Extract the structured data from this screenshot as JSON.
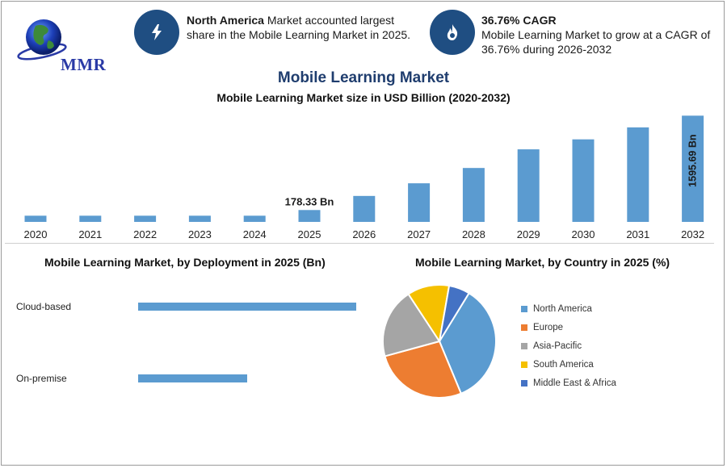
{
  "logo": {
    "text": "MMR"
  },
  "highlights": [
    {
      "bold": "North America",
      "text": " Market accounted largest share in the Mobile Learning Market in 2025.",
      "icon": "lightning-icon"
    },
    {
      "bold": "36.76% CAGR",
      "text": "Mobile Learning Market to grow at a CAGR of 36.76% during 2026-2032",
      "icon": "flame-icon"
    }
  ],
  "page": {
    "title": "Mobile Learning Market",
    "subtitle": "Mobile Learning Market size in USD Billion (2020-2032)"
  },
  "chart_data": [
    {
      "type": "bar",
      "title": "Mobile Learning Market size in USD Billion (2020-2032)",
      "categories": [
        "2020",
        "2021",
        "2022",
        "2023",
        "2024",
        "2025",
        "2026",
        "2027",
        "2028",
        "2029",
        "2030",
        "2031",
        "2032"
      ],
      "values": [
        93,
        93,
        93,
        93,
        93,
        178.33,
        390,
        580,
        810,
        1090,
        1240,
        1420,
        1595.69
      ],
      "data_labels": {
        "2025": "178.33 Bn",
        "2032": "1595.69 Bn"
      },
      "color": "#5b9bd0",
      "ylim": [
        0,
        1600
      ]
    },
    {
      "type": "bar",
      "orientation": "horizontal",
      "title": "Mobile Learning Market, by Deployment in 2025 (Bn)",
      "categories": [
        "Cloud-based",
        "On-premise"
      ],
      "values": [
        118,
        59
      ],
      "color": "#5b9bd0"
    },
    {
      "type": "pie",
      "title": "Mobile Learning Market, by Country in 2025 (%)",
      "labels": [
        "North America",
        "Europe",
        "Asia-Pacific",
        "South America",
        "Middle East & Africa"
      ],
      "values": [
        35,
        27,
        20,
        12,
        6
      ],
      "colors": [
        "#5b9bd0",
        "#ed7d31",
        "#a5a5a5",
        "#f5c000",
        "#4472c4"
      ]
    }
  ]
}
